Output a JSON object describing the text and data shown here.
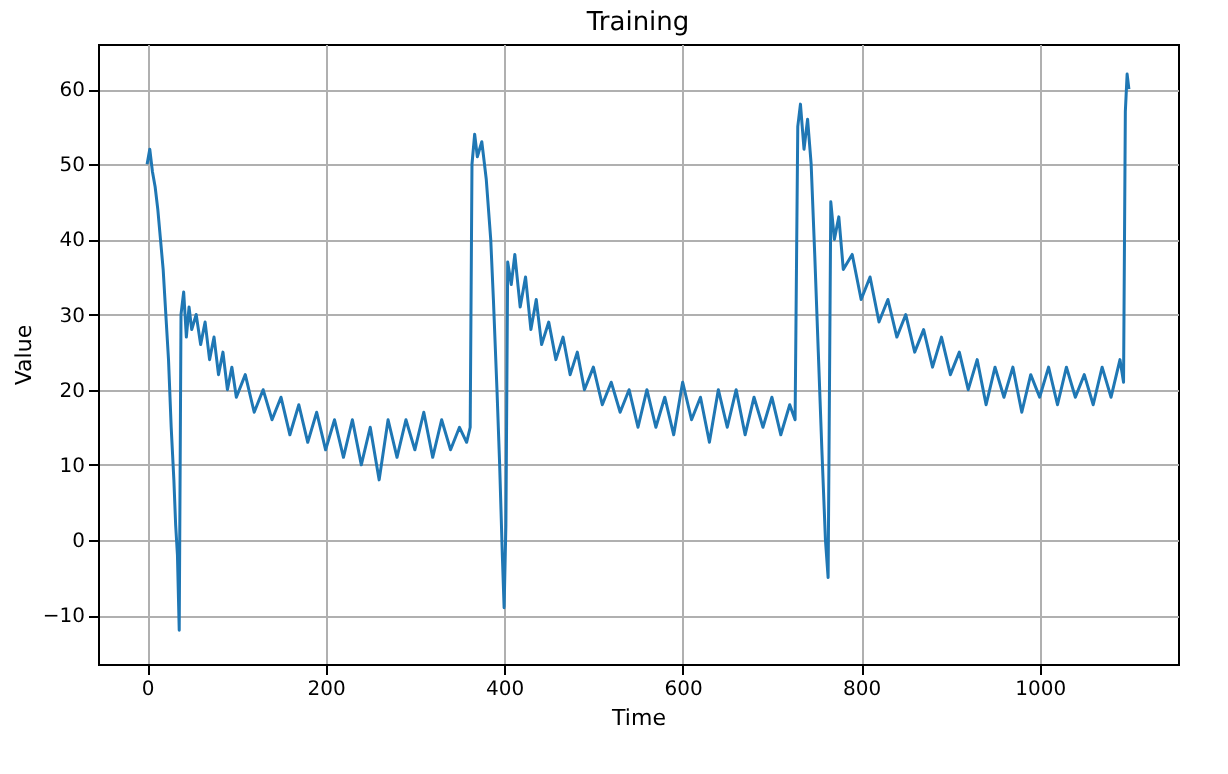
{
  "chart_data": {
    "type": "line",
    "title": "Training",
    "xlabel": "Time",
    "ylabel": "Value",
    "xlim": [
      -55,
      1155
    ],
    "ylim": [
      -16.5,
      66
    ],
    "xticks": [
      0,
      200,
      400,
      600,
      800,
      1000
    ],
    "yticks": [
      -10,
      0,
      10,
      20,
      30,
      40,
      50,
      60
    ],
    "grid": true,
    "x": [
      0,
      3,
      6,
      9,
      12,
      15,
      18,
      21,
      24,
      27,
      30,
      32,
      34,
      36,
      38,
      41,
      44,
      47,
      50,
      55,
      60,
      65,
      70,
      75,
      80,
      85,
      90,
      95,
      100,
      110,
      120,
      130,
      140,
      150,
      160,
      170,
      180,
      190,
      200,
      210,
      220,
      230,
      240,
      250,
      260,
      270,
      280,
      290,
      300,
      310,
      320,
      330,
      340,
      350,
      358,
      362,
      364,
      367,
      370,
      375,
      380,
      385,
      388,
      392,
      395,
      398,
      400,
      402,
      404,
      408,
      412,
      418,
      424,
      430,
      436,
      442,
      450,
      458,
      466,
      474,
      482,
      490,
      500,
      510,
      520,
      530,
      540,
      550,
      560,
      570,
      580,
      590,
      600,
      610,
      620,
      630,
      640,
      650,
      660,
      670,
      680,
      690,
      700,
      710,
      720,
      726,
      729,
      732,
      736,
      740,
      744,
      748,
      752,
      756,
      760,
      763,
      766,
      770,
      775,
      780,
      790,
      800,
      810,
      820,
      830,
      840,
      850,
      860,
      870,
      880,
      890,
      900,
      910,
      920,
      930,
      940,
      950,
      960,
      970,
      980,
      990,
      1000,
      1010,
      1020,
      1030,
      1040,
      1050,
      1060,
      1070,
      1080,
      1090,
      1094,
      1096,
      1098,
      1100
    ],
    "series": [
      {
        "color": "#1f77b4",
        "values": [
          50,
          52,
          49,
          47,
          44,
          40,
          36,
          30,
          24,
          15,
          8,
          2,
          -2,
          -12,
          30,
          33,
          27,
          31,
          28,
          30,
          26,
          29,
          24,
          27,
          22,
          25,
          20,
          23,
          19,
          22,
          17,
          20,
          16,
          19,
          14,
          18,
          13,
          17,
          12,
          16,
          11,
          16,
          10,
          15,
          8,
          16,
          11,
          16,
          12,
          17,
          11,
          16,
          12,
          15,
          13,
          15,
          50,
          54,
          51,
          53,
          48,
          40,
          32,
          20,
          10,
          -2,
          -9,
          2,
          37,
          34,
          38,
          31,
          35,
          28,
          32,
          26,
          29,
          24,
          27,
          22,
          25,
          20,
          23,
          18,
          21,
          17,
          20,
          15,
          20,
          15,
          19,
          14,
          21,
          16,
          19,
          13,
          20,
          15,
          20,
          14,
          19,
          15,
          19,
          14,
          18,
          16,
          55,
          58,
          52,
          56,
          50,
          38,
          25,
          12,
          0,
          -5,
          45,
          40,
          43,
          36,
          38,
          32,
          35,
          29,
          32,
          27,
          30,
          25,
          28,
          23,
          27,
          22,
          25,
          20,
          24,
          18,
          23,
          19,
          23,
          17,
          22,
          19,
          23,
          18,
          23,
          19,
          22,
          18,
          23,
          19,
          24,
          21,
          57,
          62,
          60
        ]
      }
    ]
  }
}
